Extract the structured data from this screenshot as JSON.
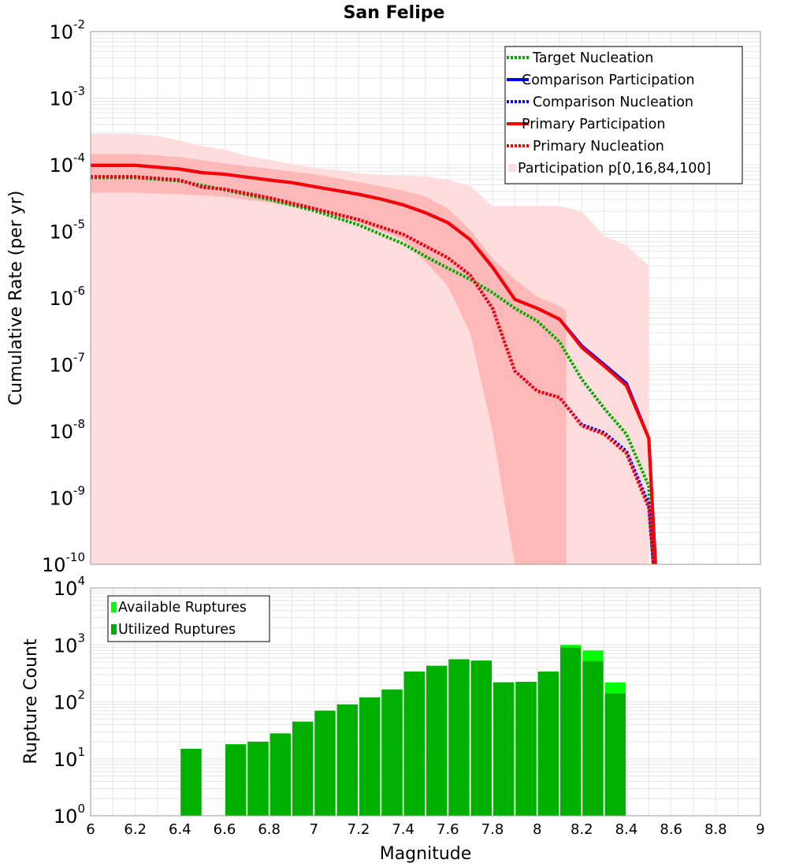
{
  "colors": {
    "target": "#00aa00",
    "comparison": "#0000ff",
    "primary": "#ff0000",
    "band_outer": "#ffdddd",
    "band_inner": "#ffb8b8",
    "available": "#00ff00",
    "utilized": "#00b000",
    "grid": "#e6e6e6"
  },
  "chart_data": [
    {
      "type": "line",
      "title": "San Felipe",
      "xlabel": "",
      "ylabel": "Cumulative Rate (per yr)",
      "xlim": [
        6,
        9
      ],
      "ylim": [
        1e-10,
        0.01
      ],
      "yscale": "log",
      "y_ticks": [
        {
          "base": "10",
          "exp": "-2",
          "value": 0.01
        },
        {
          "base": "10",
          "exp": "-3",
          "value": 0.001
        },
        {
          "base": "10",
          "exp": "-4",
          "value": 0.0001
        },
        {
          "base": "10",
          "exp": "-5",
          "value": 1e-05
        },
        {
          "base": "10",
          "exp": "-6",
          "value": 1e-06
        },
        {
          "base": "10",
          "exp": "-7",
          "value": 1e-07
        },
        {
          "base": "10",
          "exp": "-8",
          "value": 1e-08
        },
        {
          "base": "10",
          "exp": "-9",
          "value": 1e-09
        },
        {
          "base": "10",
          "exp": "-10",
          "value": 1e-10
        }
      ],
      "bands": [
        {
          "name": "Participation p[0,100]",
          "level": "outer",
          "x": [
            6.0,
            6.2,
            6.3,
            6.4,
            6.5,
            6.6,
            6.7,
            6.8,
            6.9,
            7.0,
            7.1,
            7.2,
            7.3,
            7.4,
            7.5,
            7.6,
            7.7,
            7.8,
            7.9,
            8.0,
            8.1,
            8.2,
            8.3,
            8.4,
            8.5
          ],
          "upper": [
            0.00029,
            0.00029,
            0.00027,
            0.00023,
            0.00019,
            0.00017,
            0.000135,
            0.000118,
            0.000103,
            9e-05,
            8.3e-05,
            7.5e-05,
            6.9e-05,
            6.8e-05,
            6.7e-05,
            5.9e-05,
            4.8e-05,
            2.4e-05,
            2.4e-05,
            2.4e-05,
            2.4e-05,
            2e-05,
            8.5e-06,
            6.2e-06,
            3e-06
          ],
          "lower": [
            1e-10,
            1e-10,
            1e-10,
            1e-10,
            1e-10,
            1e-10,
            1e-10,
            1e-10,
            1e-10,
            1e-10,
            1e-10,
            1e-10,
            1e-10,
            1e-10,
            1e-10,
            1e-10,
            1e-10,
            1e-10,
            1e-10,
            1e-10,
            1e-10,
            1e-10,
            1e-10,
            1e-10,
            1e-10
          ]
        },
        {
          "name": "Participation p[16,84]",
          "level": "inner",
          "x": [
            6.0,
            6.2,
            6.4,
            6.6,
            6.8,
            7.0,
            7.2,
            7.4,
            7.5,
            7.6,
            7.7,
            7.8,
            7.9,
            8.0,
            8.1,
            8.13
          ],
          "upper": [
            0.000145,
            0.000145,
            0.00013,
            0.000105,
            8.7e-05,
            7.2e-05,
            5.5e-05,
            4.1e-05,
            3.3e-05,
            2.2e-05,
            1.05e-05,
            3.9e-06,
            1.9e-06,
            1.05e-06,
            7.5e-07,
            6.5e-07
          ],
          "lower": [
            3.8e-05,
            3.8e-05,
            3.6e-05,
            3.3e-05,
            2.7e-05,
            2.1e-05,
            1.35e-05,
            7.5e-06,
            3.5e-06,
            1.5e-06,
            3e-07,
            1e-08,
            1e-10,
            1e-10,
            1e-10,
            1e-10
          ]
        }
      ],
      "series": [
        {
          "name": "Target Nucleation",
          "style": "dotted",
          "color_key": "target",
          "x": [
            6.0,
            6.2,
            6.4,
            6.6,
            6.8,
            7.0,
            7.2,
            7.4,
            7.5,
            7.6,
            7.7,
            7.8,
            7.9,
            8.0,
            8.1,
            8.2,
            8.3,
            8.4,
            8.5,
            8.52
          ],
          "y": [
            6.4e-05,
            6.4e-05,
            5.7e-05,
            4.2e-05,
            3e-05,
            2.05e-05,
            1.25e-05,
            6.5e-06,
            4.2e-06,
            2.8e-06,
            1.9e-06,
            1.2e-06,
            7e-07,
            4.5e-07,
            2.2e-07,
            6e-08,
            2.2e-08,
            9e-09,
            1.5e-09,
            1e-10
          ]
        },
        {
          "name": "Comparison Participation",
          "style": "solid",
          "color_key": "comparison",
          "x": [
            6.0,
            6.2,
            6.4,
            6.5,
            6.6,
            6.8,
            6.9,
            7.0,
            7.2,
            7.3,
            7.4,
            7.5,
            7.6,
            7.7,
            7.8,
            7.9,
            8.0,
            8.1,
            8.2,
            8.3,
            8.4,
            8.5,
            8.53
          ],
          "y": [
            9.8e-05,
            9.8e-05,
            8.6e-05,
            7.6e-05,
            7.2e-05,
            5.9e-05,
            5.4e-05,
            4.7e-05,
            3.6e-05,
            3.05e-05,
            2.5e-05,
            1.9e-05,
            1.35e-05,
            7.5e-06,
            2.9e-06,
            9.5e-07,
            7e-07,
            4.8e-07,
            1.9e-07,
            1e-07,
            5.2e-08,
            7.8e-09,
            1e-10
          ]
        },
        {
          "name": "Comparison Nucleation",
          "style": "dotted",
          "color_key": "comparison",
          "x": [
            6.0,
            6.2,
            6.4,
            6.5,
            6.6,
            6.8,
            7.0,
            7.2,
            7.4,
            7.6,
            7.7,
            7.8,
            7.9,
            8.0,
            8.1,
            8.2,
            8.3,
            8.4,
            8.5,
            8.52
          ],
          "y": [
            6.6e-05,
            6.6e-05,
            5.9e-05,
            4.6e-05,
            4.3e-05,
            3.2e-05,
            2.2e-05,
            1.5e-05,
            9e-06,
            4e-06,
            2.2e-06,
            7e-07,
            8e-08,
            4e-08,
            3.2e-08,
            1.25e-08,
            9.5e-09,
            5e-09,
            8e-10,
            1e-10
          ]
        },
        {
          "name": "Primary Participation",
          "style": "solid",
          "color_key": "primary",
          "x": [
            6.0,
            6.2,
            6.4,
            6.5,
            6.6,
            6.8,
            6.9,
            7.0,
            7.2,
            7.3,
            7.4,
            7.5,
            7.6,
            7.7,
            7.8,
            7.9,
            8.0,
            8.1,
            8.2,
            8.3,
            8.4,
            8.5,
            8.53
          ],
          "y": [
            9.8e-05,
            9.8e-05,
            8.6e-05,
            7.6e-05,
            7.2e-05,
            5.9e-05,
            5.4e-05,
            4.7e-05,
            3.6e-05,
            3.05e-05,
            2.5e-05,
            1.9e-05,
            1.35e-05,
            7.5e-06,
            2.9e-06,
            9.5e-07,
            7e-07,
            4.8e-07,
            1.8e-07,
            9.5e-08,
            4.8e-08,
            7.8e-09,
            1e-10
          ]
        },
        {
          "name": "Primary Nucleation",
          "style": "dotted",
          "color_key": "primary",
          "x": [
            6.0,
            6.2,
            6.4,
            6.5,
            6.6,
            6.8,
            7.0,
            7.2,
            7.4,
            7.6,
            7.7,
            7.8,
            7.9,
            8.0,
            8.1,
            8.2,
            8.3,
            8.4,
            8.5,
            8.52
          ],
          "y": [
            6.6e-05,
            6.6e-05,
            5.9e-05,
            4.6e-05,
            4.3e-05,
            3.2e-05,
            2.2e-05,
            1.5e-05,
            9e-06,
            4e-06,
            2.2e-06,
            7e-07,
            8e-08,
            4e-08,
            3.2e-08,
            1.2e-08,
            9e-09,
            4.6e-09,
            7e-10,
            1e-10
          ]
        }
      ],
      "legend": {
        "placement": "top-right",
        "entries": [
          {
            "label": "Target Nucleation",
            "style": "dotted",
            "color_key": "target"
          },
          {
            "label": "Comparison Participation",
            "style": "solid",
            "color_key": "comparison"
          },
          {
            "label": "Comparison Nucleation",
            "style": "dotted",
            "color_key": "comparison"
          },
          {
            "label": "Primary Participation",
            "style": "solid",
            "color_key": "primary"
          },
          {
            "label": "Primary Nucleation",
            "style": "dotted",
            "color_key": "primary"
          },
          {
            "label": "Participation p[0,16,84,100]",
            "style": "square",
            "color_key": "band_outer"
          }
        ]
      }
    },
    {
      "type": "bar",
      "title": "",
      "xlabel": "Magnitude",
      "ylabel": "Rupture Count",
      "xlim": [
        6,
        9
      ],
      "ylim": [
        1,
        10000.0
      ],
      "yscale": "log",
      "x_ticks": [
        "6",
        "6.2",
        "6.4",
        "6.6",
        "6.8",
        "7",
        "7.2",
        "7.4",
        "7.6",
        "7.8",
        "8",
        "8.2",
        "8.4",
        "8.6",
        "8.8",
        "9"
      ],
      "y_ticks": [
        {
          "base": "10",
          "exp": "4",
          "value": 10000.0
        },
        {
          "base": "10",
          "exp": "3",
          "value": 1000.0
        },
        {
          "base": "10",
          "exp": "2",
          "value": 100.0
        },
        {
          "base": "10",
          "exp": "1",
          "value": 10.0
        },
        {
          "base": "10",
          "exp": "0",
          "value": 1.0
        }
      ],
      "bin_width": 0.1,
      "categories": [
        6.45,
        6.65,
        6.75,
        6.85,
        6.95,
        7.05,
        7.15,
        7.25,
        7.35,
        7.45,
        7.55,
        7.65,
        7.75,
        7.85,
        7.95,
        8.05,
        8.15,
        8.25,
        8.35
      ],
      "series": [
        {
          "name": "Available Ruptures",
          "color_key": "available",
          "values": [
            15,
            18,
            20,
            28,
            45,
            70,
            90,
            120,
            165,
            340,
            430,
            560,
            530,
            220,
            225,
            340,
            1000,
            800,
            220
          ]
        },
        {
          "name": "Utilized Ruptures",
          "color_key": "utilized",
          "values": [
            15,
            18,
            20,
            28,
            45,
            70,
            90,
            120,
            165,
            340,
            430,
            560,
            530,
            220,
            225,
            340,
            900,
            520,
            140
          ]
        }
      ],
      "legend": {
        "placement": "top-left",
        "entries": [
          {
            "label": "Available Ruptures",
            "color_key": "available"
          },
          {
            "label": "Utilized Ruptures",
            "color_key": "utilized"
          }
        ]
      }
    }
  ]
}
